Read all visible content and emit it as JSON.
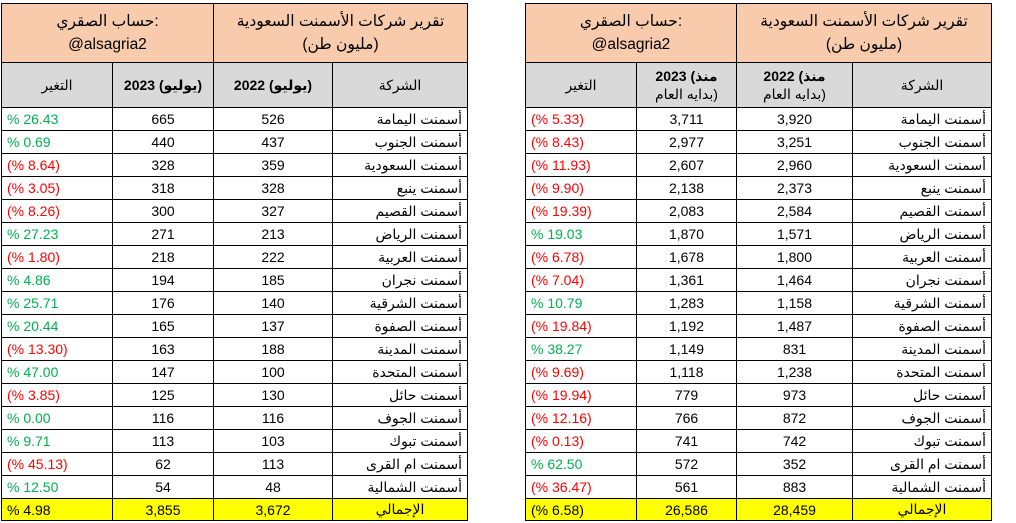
{
  "left_table": {
    "header": {
      "account_label": "حساب الصقري:",
      "account_handle": "@alsagria2",
      "report_title": "تقرير شركات الأسمنت السعودية",
      "report_unit": "(مليون طن)"
    },
    "columns": {
      "change": "التغير",
      "y2023": "2023 (يوليو)",
      "y2022": "2022 (يوليو)",
      "company": "الشركة"
    },
    "rows": [
      {
        "change": "% 26.43",
        "sign": "pos",
        "y2023": "665",
        "y2022": "526",
        "company": "أسمنت اليمامة"
      },
      {
        "change": "% 0.69",
        "sign": "pos",
        "y2023": "440",
        "y2022": "437",
        "company": "أسمنت الجنوب"
      },
      {
        "change": "(% 8.64)",
        "sign": "neg",
        "y2023": "328",
        "y2022": "359",
        "company": "أسمنت السعودية"
      },
      {
        "change": "(% 3.05)",
        "sign": "neg",
        "y2023": "318",
        "y2022": "328",
        "company": "أسمنت ينبع"
      },
      {
        "change": "(% 8.26)",
        "sign": "neg",
        "y2023": "300",
        "y2022": "327",
        "company": "أسمنت القصيم"
      },
      {
        "change": "% 27.23",
        "sign": "pos",
        "y2023": "271",
        "y2022": "213",
        "company": "أسمنت الرياض"
      },
      {
        "change": "(% 1.80)",
        "sign": "neg",
        "y2023": "218",
        "y2022": "222",
        "company": "أسمنت العربية"
      },
      {
        "change": "% 4.86",
        "sign": "pos",
        "y2023": "194",
        "y2022": "185",
        "company": "أسمنت نجران"
      },
      {
        "change": "% 25.71",
        "sign": "pos",
        "y2023": "176",
        "y2022": "140",
        "company": "أسمنت الشرقية"
      },
      {
        "change": "% 20.44",
        "sign": "pos",
        "y2023": "165",
        "y2022": "137",
        "company": "أسمنت الصفوة"
      },
      {
        "change": "(% 13.30)",
        "sign": "neg",
        "y2023": "163",
        "y2022": "188",
        "company": "أسمنت المدينة"
      },
      {
        "change": "% 47.00",
        "sign": "pos",
        "y2023": "147",
        "y2022": "100",
        "company": "أسمنت المتحدة"
      },
      {
        "change": "(% 3.85)",
        "sign": "neg",
        "y2023": "125",
        "y2022": "130",
        "company": "أسمنت حائل"
      },
      {
        "change": "% 0.00",
        "sign": "pos",
        "y2023": "116",
        "y2022": "116",
        "company": "أسمنت الجوف"
      },
      {
        "change": "% 9.71",
        "sign": "pos",
        "y2023": "113",
        "y2022": "103",
        "company": "أسمنت تبوك"
      },
      {
        "change": "(% 45.13)",
        "sign": "neg",
        "y2023": "62",
        "y2022": "113",
        "company": "أسمنت ام القرى"
      },
      {
        "change": "% 12.50",
        "sign": "pos",
        "y2023": "54",
        "y2022": "48",
        "company": "أسمنت الشمالية"
      }
    ],
    "total": {
      "change": "% 4.98",
      "y2023": "3,855",
      "y2022": "3,672",
      "company": "الإجمالي"
    }
  },
  "right_table": {
    "header": {
      "account_label": "حساب الصقري:",
      "account_handle": "@alsagria2",
      "report_title": "تقرير شركات الأسمنت السعودية",
      "report_unit": "(مليون طن)"
    },
    "columns": {
      "change": "التغير",
      "y2023_line1": "2023 (منذ",
      "y2023_line2": "بدايه العام)",
      "y2022_line1": "2022 (منذ",
      "y2022_line2": "بدايه العام)",
      "company": "الشركة"
    },
    "rows": [
      {
        "change": "(% 5.33)",
        "sign": "neg",
        "y2023": "3,711",
        "y2022": "3,920",
        "company": "أسمنت اليمامة"
      },
      {
        "change": "(% 8.43)",
        "sign": "neg",
        "y2023": "2,977",
        "y2022": "3,251",
        "company": "أسمنت الجنوب"
      },
      {
        "change": "(% 11.93)",
        "sign": "neg",
        "y2023": "2,607",
        "y2022": "2,960",
        "company": "أسمنت السعودية"
      },
      {
        "change": "(% 9.90)",
        "sign": "neg",
        "y2023": "2,138",
        "y2022": "2,373",
        "company": "أسمنت ينبع"
      },
      {
        "change": "(% 19.39)",
        "sign": "neg",
        "y2023": "2,083",
        "y2022": "2,584",
        "company": "أسمنت القصيم"
      },
      {
        "change": "% 19.03",
        "sign": "pos",
        "y2023": "1,870",
        "y2022": "1,571",
        "company": "أسمنت الرياض"
      },
      {
        "change": "(% 6.78)",
        "sign": "neg",
        "y2023": "1,678",
        "y2022": "1,800",
        "company": "أسمنت العربية"
      },
      {
        "change": "(% 7.04)",
        "sign": "neg",
        "y2023": "1,361",
        "y2022": "1,464",
        "company": "أسمنت نجران"
      },
      {
        "change": "% 10.79",
        "sign": "pos",
        "y2023": "1,283",
        "y2022": "1,158",
        "company": "أسمنت الشرقية"
      },
      {
        "change": "(% 19.84)",
        "sign": "neg",
        "y2023": "1,192",
        "y2022": "1,487",
        "company": "أسمنت الصفوة"
      },
      {
        "change": "% 38.27",
        "sign": "pos",
        "y2023": "1,149",
        "y2022": "831",
        "company": "أسمنت المدينة"
      },
      {
        "change": "(% 9.69)",
        "sign": "neg",
        "y2023": "1,118",
        "y2022": "1,238",
        "company": "أسمنت المتحدة"
      },
      {
        "change": "(% 19.94)",
        "sign": "neg",
        "y2023": "779",
        "y2022": "973",
        "company": "أسمنت حائل"
      },
      {
        "change": "(% 12.16)",
        "sign": "neg",
        "y2023": "766",
        "y2022": "872",
        "company": "أسمنت الجوف"
      },
      {
        "change": "(% 0.13)",
        "sign": "neg",
        "y2023": "741",
        "y2022": "742",
        "company": "أسمنت تبوك"
      },
      {
        "change": "% 62.50",
        "sign": "pos",
        "y2023": "572",
        "y2022": "352",
        "company": "أسمنت ام القرى"
      },
      {
        "change": "(% 36.47)",
        "sign": "neg",
        "y2023": "561",
        "y2022": "883",
        "company": "أسمنت الشمالية"
      }
    ],
    "total": {
      "change": "(% 6.58)",
      "y2023": "26,586",
      "y2022": "28,459",
      "company": "الإجمالي"
    }
  },
  "colors": {
    "header_bg": "#f7cbac",
    "column_header_bg": "#d9d9d9",
    "total_bg": "#ffff00",
    "positive": "#00b050",
    "negative": "#ff0000"
  }
}
